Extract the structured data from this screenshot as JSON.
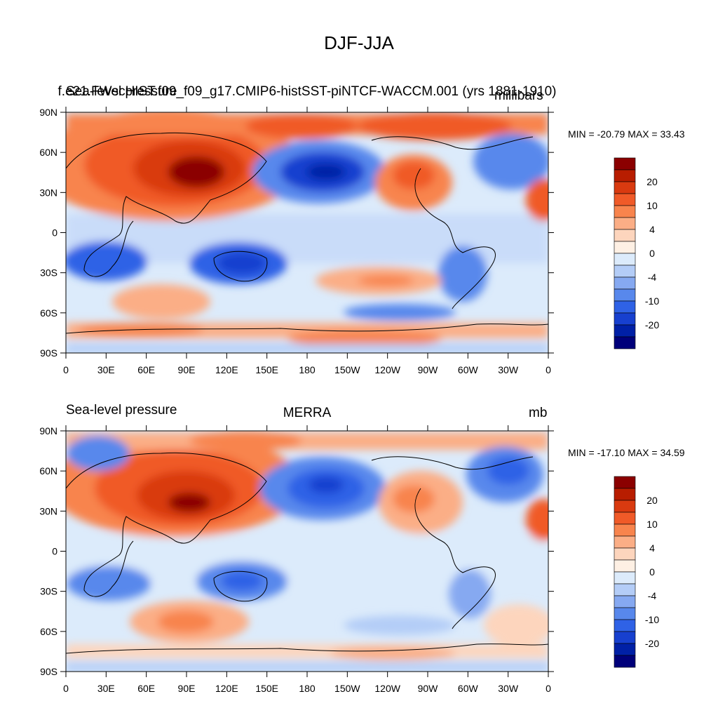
{
  "title": "DJF-JJA",
  "panels": [
    {
      "id": "top",
      "left_label": "Sea-level pressure",
      "center_label": "f.e21.FWscHIST.f09_f09_g17.CMIP6-histSST-piNTCF-WACCM.001 (yrs 1881-1910)",
      "right_label": "millibars",
      "min_max_text": "MIN = -20.79 MAX =  33.43"
    },
    {
      "id": "bottom",
      "left_label": "Sea-level pressure",
      "center_label": "MERRA",
      "right_label": "mb",
      "min_max_text": "MIN = -17.10 MAX =  34.59"
    }
  ],
  "axes": {
    "lat_ticks": [
      "90N",
      "60N",
      "30N",
      "0",
      "30S",
      "60S",
      "90S"
    ],
    "lon_ticks": [
      "0",
      "30E",
      "60E",
      "90E",
      "120E",
      "150E",
      "180",
      "150W",
      "120W",
      "90W",
      "60W",
      "30W",
      "0"
    ]
  },
  "colorbar": {
    "tick_labels": [
      "20",
      "10",
      "4",
      "0",
      "-4",
      "-10",
      "-20"
    ],
    "colors": [
      "#8b0000",
      "#b81d00",
      "#d93a10",
      "#f05a28",
      "#f8844d",
      "#fbae86",
      "#fdd5bd",
      "#fef0e4",
      "#dcebfb",
      "#b4cdf7",
      "#86a9f1",
      "#5888ec",
      "#2f62e6",
      "#1740cf",
      "#0020a6",
      "#00007a"
    ]
  },
  "chart_data": {
    "type": "heatmap",
    "variable": "Sea-level pressure",
    "season_difference": "DJF-JJA",
    "lat_range": [
      -90,
      90
    ],
    "lon_range": [
      0,
      360
    ],
    "contour_levels": [
      -25,
      -20,
      -15,
      -10,
      -8,
      -6,
      -4,
      -2,
      0,
      2,
      4,
      6,
      8,
      10,
      15,
      20,
      25
    ],
    "panels": [
      {
        "name": "f.e21.FWscHIST.f09_f09_g17.CMIP6-histSST-piNTCF-WACCM.001 (yrs 1881-1910)",
        "units": "millibars",
        "min": -20.79,
        "max": 33.43
      },
      {
        "name": "MERRA",
        "units": "mb",
        "min": -17.1,
        "max": 34.59
      }
    ]
  }
}
